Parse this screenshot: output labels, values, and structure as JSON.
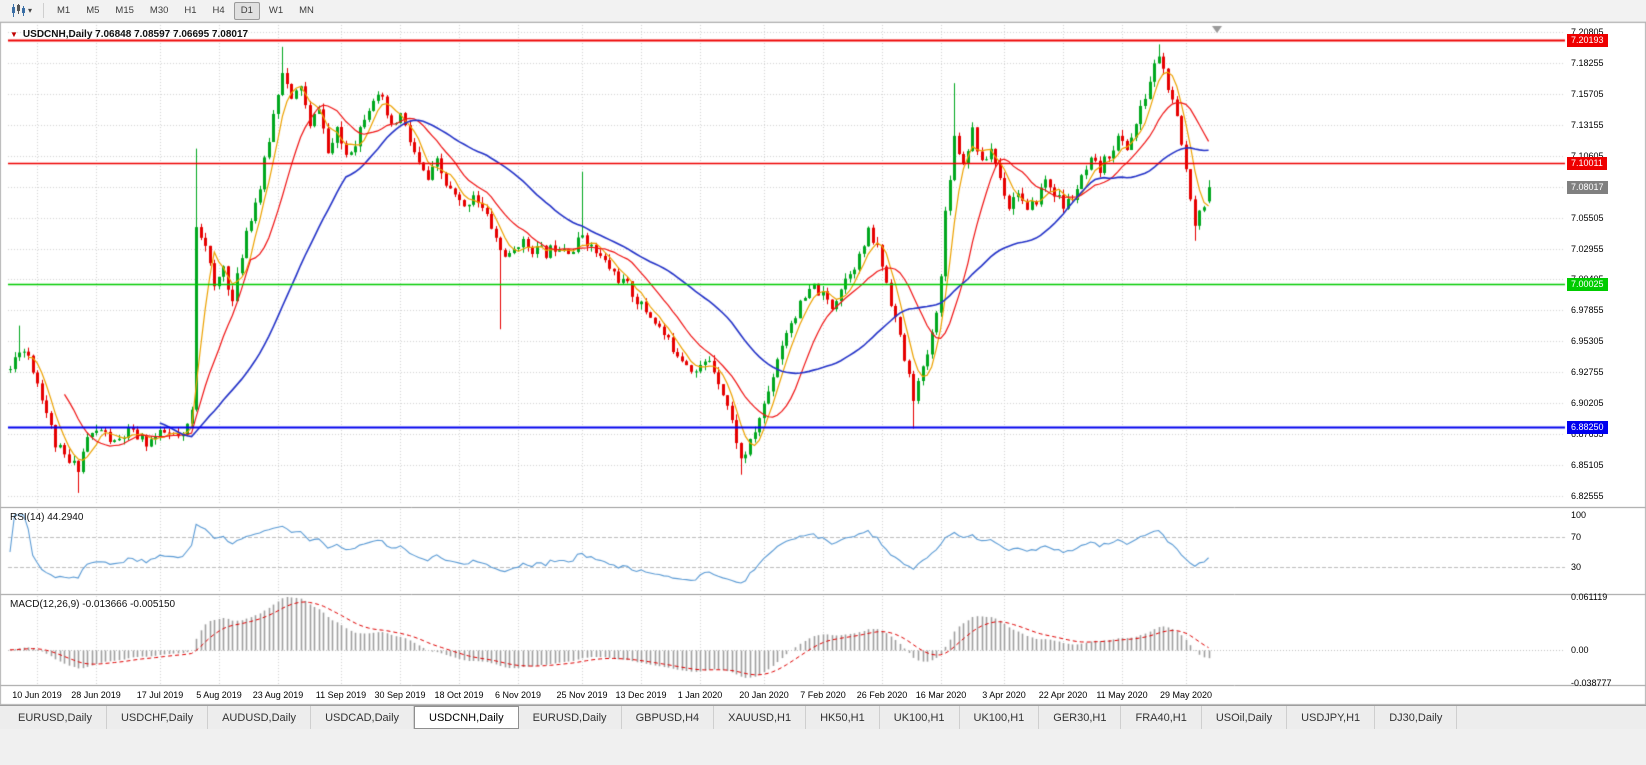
{
  "window": {
    "symbol": "USDCNH",
    "period": "Daily"
  },
  "toolbar": {
    "timeframes": [
      "M1",
      "M5",
      "M15",
      "M30",
      "H1",
      "H4",
      "D1",
      "W1",
      "MN"
    ],
    "active_timeframe": "D1"
  },
  "chart": {
    "header": "USDCNH,Daily 7.06848 7.08597 7.06695 7.08017",
    "symbol_title": "USDCNH,Daily",
    "current_bar": {
      "open": "7.06848",
      "high": "7.08597",
      "low": "7.06695",
      "close": "7.08017"
    },
    "price_axis": [
      "7.20805",
      "7.18255",
      "7.15705",
      "7.13155",
      "7.10605",
      "7.08055",
      "7.05505",
      "7.02955",
      "7.00405",
      "6.97855",
      "6.95305",
      "6.92755",
      "6.90205",
      "6.87655",
      "6.85105",
      "6.82555"
    ],
    "scale": {
      "top": 7.214,
      "bottom": 6.818
    },
    "levels": [
      {
        "value": "7.20193",
        "price": 7.20193,
        "color": "#ee0000",
        "width": 2
      },
      {
        "value": "7.10011",
        "price": 7.10011,
        "color": "#ee0000",
        "width": 1.5
      },
      {
        "value": "7.00025",
        "price": 7.00025,
        "color": "#00cc00",
        "width": 1.5
      },
      {
        "value": "6.88250",
        "price": 6.8825,
        "color": "#0000ee",
        "width": 2.2
      }
    ],
    "current_price": {
      "value": "7.08017",
      "price": 7.08017,
      "color": "#808080"
    },
    "date_axis": [
      "10 Jun 2019",
      "28 Jun 2019",
      "17 Jul 2019",
      "5 Aug 2019",
      "23 Aug 2019",
      "11 Sep 2019",
      "30 Sep 2019",
      "18 Oct 2019",
      "6 Nov 2019",
      "25 Nov 2019",
      "13 Dec 2019",
      "1 Jan 2020",
      "20 Jan 2020",
      "7 Feb 2020",
      "26 Feb 2020",
      "16 Mar 2020",
      "3 Apr 2020",
      "22 Apr 2020",
      "11 May 2020",
      "29 May 2020"
    ],
    "date_ticks": [
      6,
      19,
      33,
      46,
      59,
      73,
      86,
      99,
      112,
      126,
      139,
      152,
      166,
      179,
      192,
      205,
      219,
      232,
      245,
      259
    ]
  },
  "indicators": {
    "rsi": {
      "label": "RSI(14) 44.2940",
      "name": "RSI(14)",
      "value": "44.2940",
      "axis": [
        "100",
        "70",
        "30"
      ],
      "guides": [
        70,
        30
      ],
      "range": [
        -4,
        108
      ],
      "line_color": "#5b9bd5"
    },
    "macd": {
      "label": "MACD(12,26,9) -0.013666 -0.005150",
      "name": "MACD(12,26,9)",
      "main_value": "-0.013666",
      "signal_value": "-0.005150",
      "axis": [
        "0.061119",
        "0.00",
        "-0.038777"
      ],
      "max": 0.061119,
      "min": -0.038777,
      "hist_color": "#9e9e9e",
      "signal_color": "#e00000"
    }
  },
  "chart_data": {
    "type": "candlestick",
    "symbol": "USDCNH",
    "timeframe": "Daily",
    "visible_range": {
      "first_date": "10 Jun 2019",
      "last_date": "29 May 2020"
    },
    "last_bar_ohlc": [
      7.06848,
      7.08597,
      7.06695,
      7.08017
    ],
    "horizontal_lines": [
      7.20193,
      7.10011,
      7.00025,
      6.8825
    ],
    "rsi_current": 44.294,
    "macd_current": [
      -0.013666,
      -0.00515
    ],
    "candle_count": 265,
    "seed": 11,
    "jitter": 0.01,
    "wick": 0.005,
    "close_waypoints": [
      [
        0,
        6.93
      ],
      [
        2,
        6.948
      ],
      [
        4,
        6.942
      ],
      [
        7,
        6.908
      ],
      [
        10,
        6.868
      ],
      [
        13,
        6.852
      ],
      [
        15,
        6.85
      ],
      [
        17,
        6.874
      ],
      [
        20,
        6.88
      ],
      [
        23,
        6.868
      ],
      [
        26,
        6.878
      ],
      [
        30,
        6.87
      ],
      [
        34,
        6.877
      ],
      [
        38,
        6.872
      ],
      [
        40,
        6.895
      ],
      [
        41,
        7.05
      ],
      [
        43,
        7.035
      ],
      [
        45,
        6.995
      ],
      [
        47,
        7.015
      ],
      [
        49,
        6.985
      ],
      [
        52,
        7.045
      ],
      [
        55,
        7.08
      ],
      [
        57,
        7.12
      ],
      [
        59,
        7.16
      ],
      [
        60,
        7.178
      ],
      [
        62,
        7.15
      ],
      [
        64,
        7.165
      ],
      [
        66,
        7.128
      ],
      [
        68,
        7.148
      ],
      [
        70,
        7.108
      ],
      [
        72,
        7.125
      ],
      [
        74,
        7.108
      ],
      [
        76,
        7.118
      ],
      [
        78,
        7.14
      ],
      [
        80,
        7.155
      ],
      [
        82,
        7.15
      ],
      [
        84,
        7.128
      ],
      [
        86,
        7.14
      ],
      [
        88,
        7.118
      ],
      [
        90,
        7.098
      ],
      [
        92,
        7.086
      ],
      [
        94,
        7.1
      ],
      [
        96,
        7.082
      ],
      [
        98,
        7.072
      ],
      [
        100,
        7.062
      ],
      [
        102,
        7.076
      ],
      [
        104,
        7.062
      ],
      [
        106,
        7.048
      ],
      [
        108,
        7.028
      ],
      [
        110,
        7.022
      ],
      [
        112,
        7.035
      ],
      [
        115,
        7.03
      ],
      [
        118,
        7.026
      ],
      [
        121,
        7.034
      ],
      [
        124,
        7.028
      ],
      [
        126,
        7.042
      ],
      [
        128,
        7.03
      ],
      [
        131,
        7.018
      ],
      [
        134,
        7.005
      ],
      [
        136,
        6.998
      ],
      [
        139,
        6.982
      ],
      [
        142,
        6.97
      ],
      [
        145,
        6.952
      ],
      [
        148,
        6.94
      ],
      [
        151,
        6.928
      ],
      [
        154,
        6.938
      ],
      [
        156,
        6.922
      ],
      [
        158,
        6.9
      ],
      [
        160,
        6.872
      ],
      [
        161,
        6.855
      ],
      [
        163,
        6.868
      ],
      [
        165,
        6.89
      ],
      [
        167,
        6.912
      ],
      [
        169,
        6.94
      ],
      [
        171,
        6.962
      ],
      [
        173,
        6.976
      ],
      [
        175,
        6.988
      ],
      [
        177,
        6.998
      ],
      [
        179,
        6.99
      ],
      [
        181,
        6.982
      ],
      [
        183,
        6.998
      ],
      [
        185,
        7.012
      ],
      [
        187,
        7.022
      ],
      [
        189,
        7.042
      ],
      [
        191,
        7.03
      ],
      [
        193,
        7.002
      ],
      [
        195,
        6.972
      ],
      [
        197,
        6.938
      ],
      [
        199,
        6.908
      ],
      [
        201,
        6.928
      ],
      [
        203,
        6.958
      ],
      [
        205,
        7.005
      ],
      [
        206,
        7.06
      ],
      [
        208,
        7.122
      ],
      [
        210,
        7.1
      ],
      [
        212,
        7.128
      ],
      [
        214,
        7.098
      ],
      [
        216,
        7.112
      ],
      [
        218,
        7.088
      ],
      [
        220,
        7.065
      ],
      [
        222,
        7.078
      ],
      [
        224,
        7.058
      ],
      [
        226,
        7.07
      ],
      [
        228,
        7.086
      ],
      [
        230,
        7.076
      ],
      [
        232,
        7.064
      ],
      [
        234,
        7.072
      ],
      [
        236,
        7.086
      ],
      [
        238,
        7.1
      ],
      [
        240,
        7.094
      ],
      [
        242,
        7.108
      ],
      [
        244,
        7.12
      ],
      [
        246,
        7.113
      ],
      [
        248,
        7.132
      ],
      [
        250,
        7.155
      ],
      [
        252,
        7.18
      ],
      [
        253,
        7.19
      ],
      [
        255,
        7.162
      ],
      [
        257,
        7.135
      ],
      [
        259,
        7.095
      ],
      [
        261,
        7.052
      ],
      [
        263,
        7.068
      ],
      [
        264,
        7.08
      ]
    ],
    "spikes": [
      {
        "i": 2,
        "high": 6.966
      },
      {
        "i": 15,
        "low": 6.828
      },
      {
        "i": 41,
        "high": 7.112
      },
      {
        "i": 60,
        "high": 7.196
      },
      {
        "i": 108,
        "low": 6.963
      },
      {
        "i": 126,
        "high": 7.093
      },
      {
        "i": 161,
        "low": 6.843
      },
      {
        "i": 199,
        "low": 6.881
      },
      {
        "i": 208,
        "high": 7.166
      },
      {
        "i": 253,
        "high": 7.198
      },
      {
        "i": 261,
        "low": 7.036
      }
    ],
    "moving_averages": [
      {
        "period": 5,
        "color": "#eda200",
        "width": 1.2
      },
      {
        "period": 13,
        "color": "#f01414",
        "width": 1.2
      },
      {
        "period": 34,
        "color": "#2433c8",
        "width": 1.6
      }
    ]
  },
  "tabs": [
    {
      "label": "EURUSD,Daily",
      "active": false
    },
    {
      "label": "USDCHF,Daily",
      "active": false
    },
    {
      "label": "AUDUSD,Daily",
      "active": false
    },
    {
      "label": "USDCAD,Daily",
      "active": false
    },
    {
      "label": "USDCNH,Daily",
      "active": true
    },
    {
      "label": "EURUSD,Daily",
      "active": false
    },
    {
      "label": "GBPUSD,H4",
      "active": false
    },
    {
      "label": "XAUUSD,H1",
      "active": false
    },
    {
      "label": "HK50,H1",
      "active": false
    },
    {
      "label": "UK100,H1",
      "active": false
    },
    {
      "label": "UK100,H1",
      "active": false
    },
    {
      "label": "GER30,H1",
      "active": false
    },
    {
      "label": "FRA40,H1",
      "active": false
    },
    {
      "label": "USOil,Daily",
      "active": false
    },
    {
      "label": "USDJPY,H1",
      "active": false
    },
    {
      "label": "DJ30,Daily",
      "active": false
    }
  ],
  "colors": {
    "candle_up": "#00a81e",
    "candle_down": "#e60000",
    "grid": "#d4d4d4",
    "background": "#ffffff",
    "panel_separator": "#9a9a9a",
    "border": "#b5b5b5"
  }
}
